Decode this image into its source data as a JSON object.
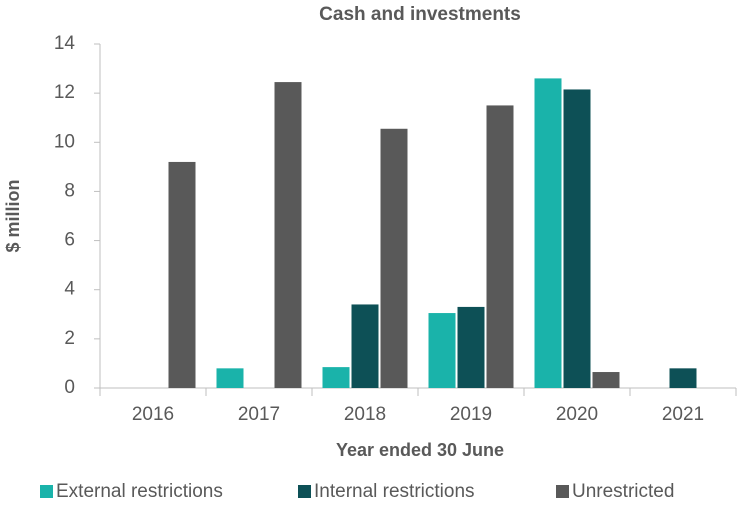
{
  "chart_data": {
    "type": "bar",
    "title": "Cash and investments",
    "x_label": "Year ended 30 June",
    "y_label": "$ million",
    "categories": [
      "2016",
      "2017",
      "2018",
      "2019",
      "2020",
      "2021"
    ],
    "series": [
      {
        "name": "External restrictions",
        "color": "#1ab3aa",
        "values": [
          0,
          0.8,
          0.85,
          3.05,
          12.6,
          0
        ]
      },
      {
        "name": "Internal restrictions",
        "color": "#0d5056",
        "values": [
          0,
          0,
          3.4,
          3.3,
          12.15,
          0.8
        ]
      },
      {
        "name": "Unrestricted",
        "color": "#595959",
        "values": [
          9.2,
          12.45,
          10.55,
          11.5,
          0.65,
          0
        ]
      }
    ],
    "ylim": [
      0,
      14
    ],
    "yticks": [
      0,
      2,
      4,
      6,
      8,
      10,
      12,
      14
    ],
    "grid": false,
    "legend": "bottom"
  }
}
